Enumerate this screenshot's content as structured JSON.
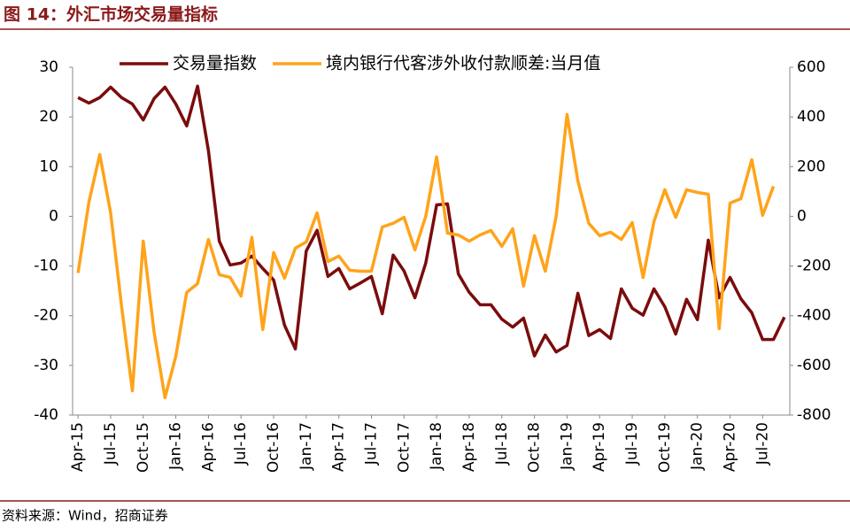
{
  "chart_data": {
    "type": "line",
    "title": "图 14：外汇市场交易量指标",
    "source": "资料来源：Wind，招商证券",
    "categories": [
      "Apr-15",
      null,
      null,
      "Jul-15",
      null,
      null,
      "Oct-15",
      null,
      null,
      "Jan-16",
      null,
      null,
      "Apr-16",
      null,
      null,
      "Jul-16",
      null,
      null,
      "Oct-16",
      null,
      null,
      "Jan-17",
      null,
      null,
      "Apr-17",
      null,
      null,
      "Jul-17",
      null,
      null,
      "Oct-17",
      null,
      null,
      "Jan-18",
      null,
      null,
      "Apr-18",
      null,
      null,
      "Jul-18",
      null,
      null,
      "Oct-18",
      null,
      null,
      "Jan-19",
      null,
      null,
      "Apr-19",
      null,
      null,
      "Jul-19",
      null,
      null,
      "Oct-19",
      null,
      null,
      "Jan-20",
      null,
      null,
      "Apr-20",
      null,
      null,
      "Jul-20",
      null,
      null
    ],
    "series": [
      {
        "name": "交易量指数",
        "color": "#7b0c0c",
        "axis": "y",
        "values": [
          23.9,
          22.8,
          23.9,
          26,
          23.9,
          22.6,
          19.4,
          23.7,
          26,
          22.6,
          18.2,
          26.2,
          13.2,
          -5,
          -9.8,
          -9.4,
          -8,
          -10.5,
          -12.8,
          -21.9,
          -26.7,
          -7,
          -2.8,
          -12.1,
          -10.5,
          -14.6,
          -13.4,
          -12.1,
          -19.6,
          -7.8,
          -11,
          -16.4,
          -9.4,
          2.3,
          2.5,
          -11.6,
          -15.3,
          -17.8,
          -17.8,
          -20.7,
          -22.3,
          -20.5,
          -28.1,
          -23.9,
          -27.3,
          -26,
          -15.5,
          -24,
          -22.8,
          -24.6,
          -14.6,
          -18.5,
          -19.9,
          -14.6,
          -18.2,
          -23.7,
          -16.7,
          -20.8,
          -4.8,
          -16.4,
          -12.3,
          -16.6,
          -19.4,
          -24.8,
          -24.8,
          -20.3
        ]
      },
      {
        "name": "境内银行代客涉外收付款顺差:当月值",
        "color": "#ffa31a",
        "axis": "y2",
        "values": [
          -228,
          57,
          249,
          14,
          -360,
          -702,
          -100,
          -467,
          -730,
          -563,
          -306,
          -271,
          -93,
          -235,
          -246,
          -321,
          -85,
          -456,
          -146,
          -249,
          -128,
          -103,
          14,
          -182,
          -160,
          -217,
          -221,
          -221,
          -43,
          -28,
          -4,
          -135,
          0,
          239,
          -68,
          -75,
          -100,
          -75,
          -57,
          -121,
          -50,
          -281,
          -78,
          -221,
          0,
          410,
          142,
          -28,
          -78,
          -64,
          -93,
          -25,
          -246,
          -21,
          107,
          -4,
          107,
          96,
          89,
          -452,
          53,
          71,
          228,
          4,
          121,
          null
        ]
      }
    ],
    "ylim": [
      -40,
      30
    ],
    "yticks": [
      -40,
      -30,
      -20,
      -10,
      0,
      10,
      20,
      30
    ],
    "y2lim": [
      -800,
      600
    ],
    "y2ticks": [
      -800,
      -600,
      -400,
      -200,
      0,
      200,
      400,
      600
    ],
    "legend": "top"
  }
}
